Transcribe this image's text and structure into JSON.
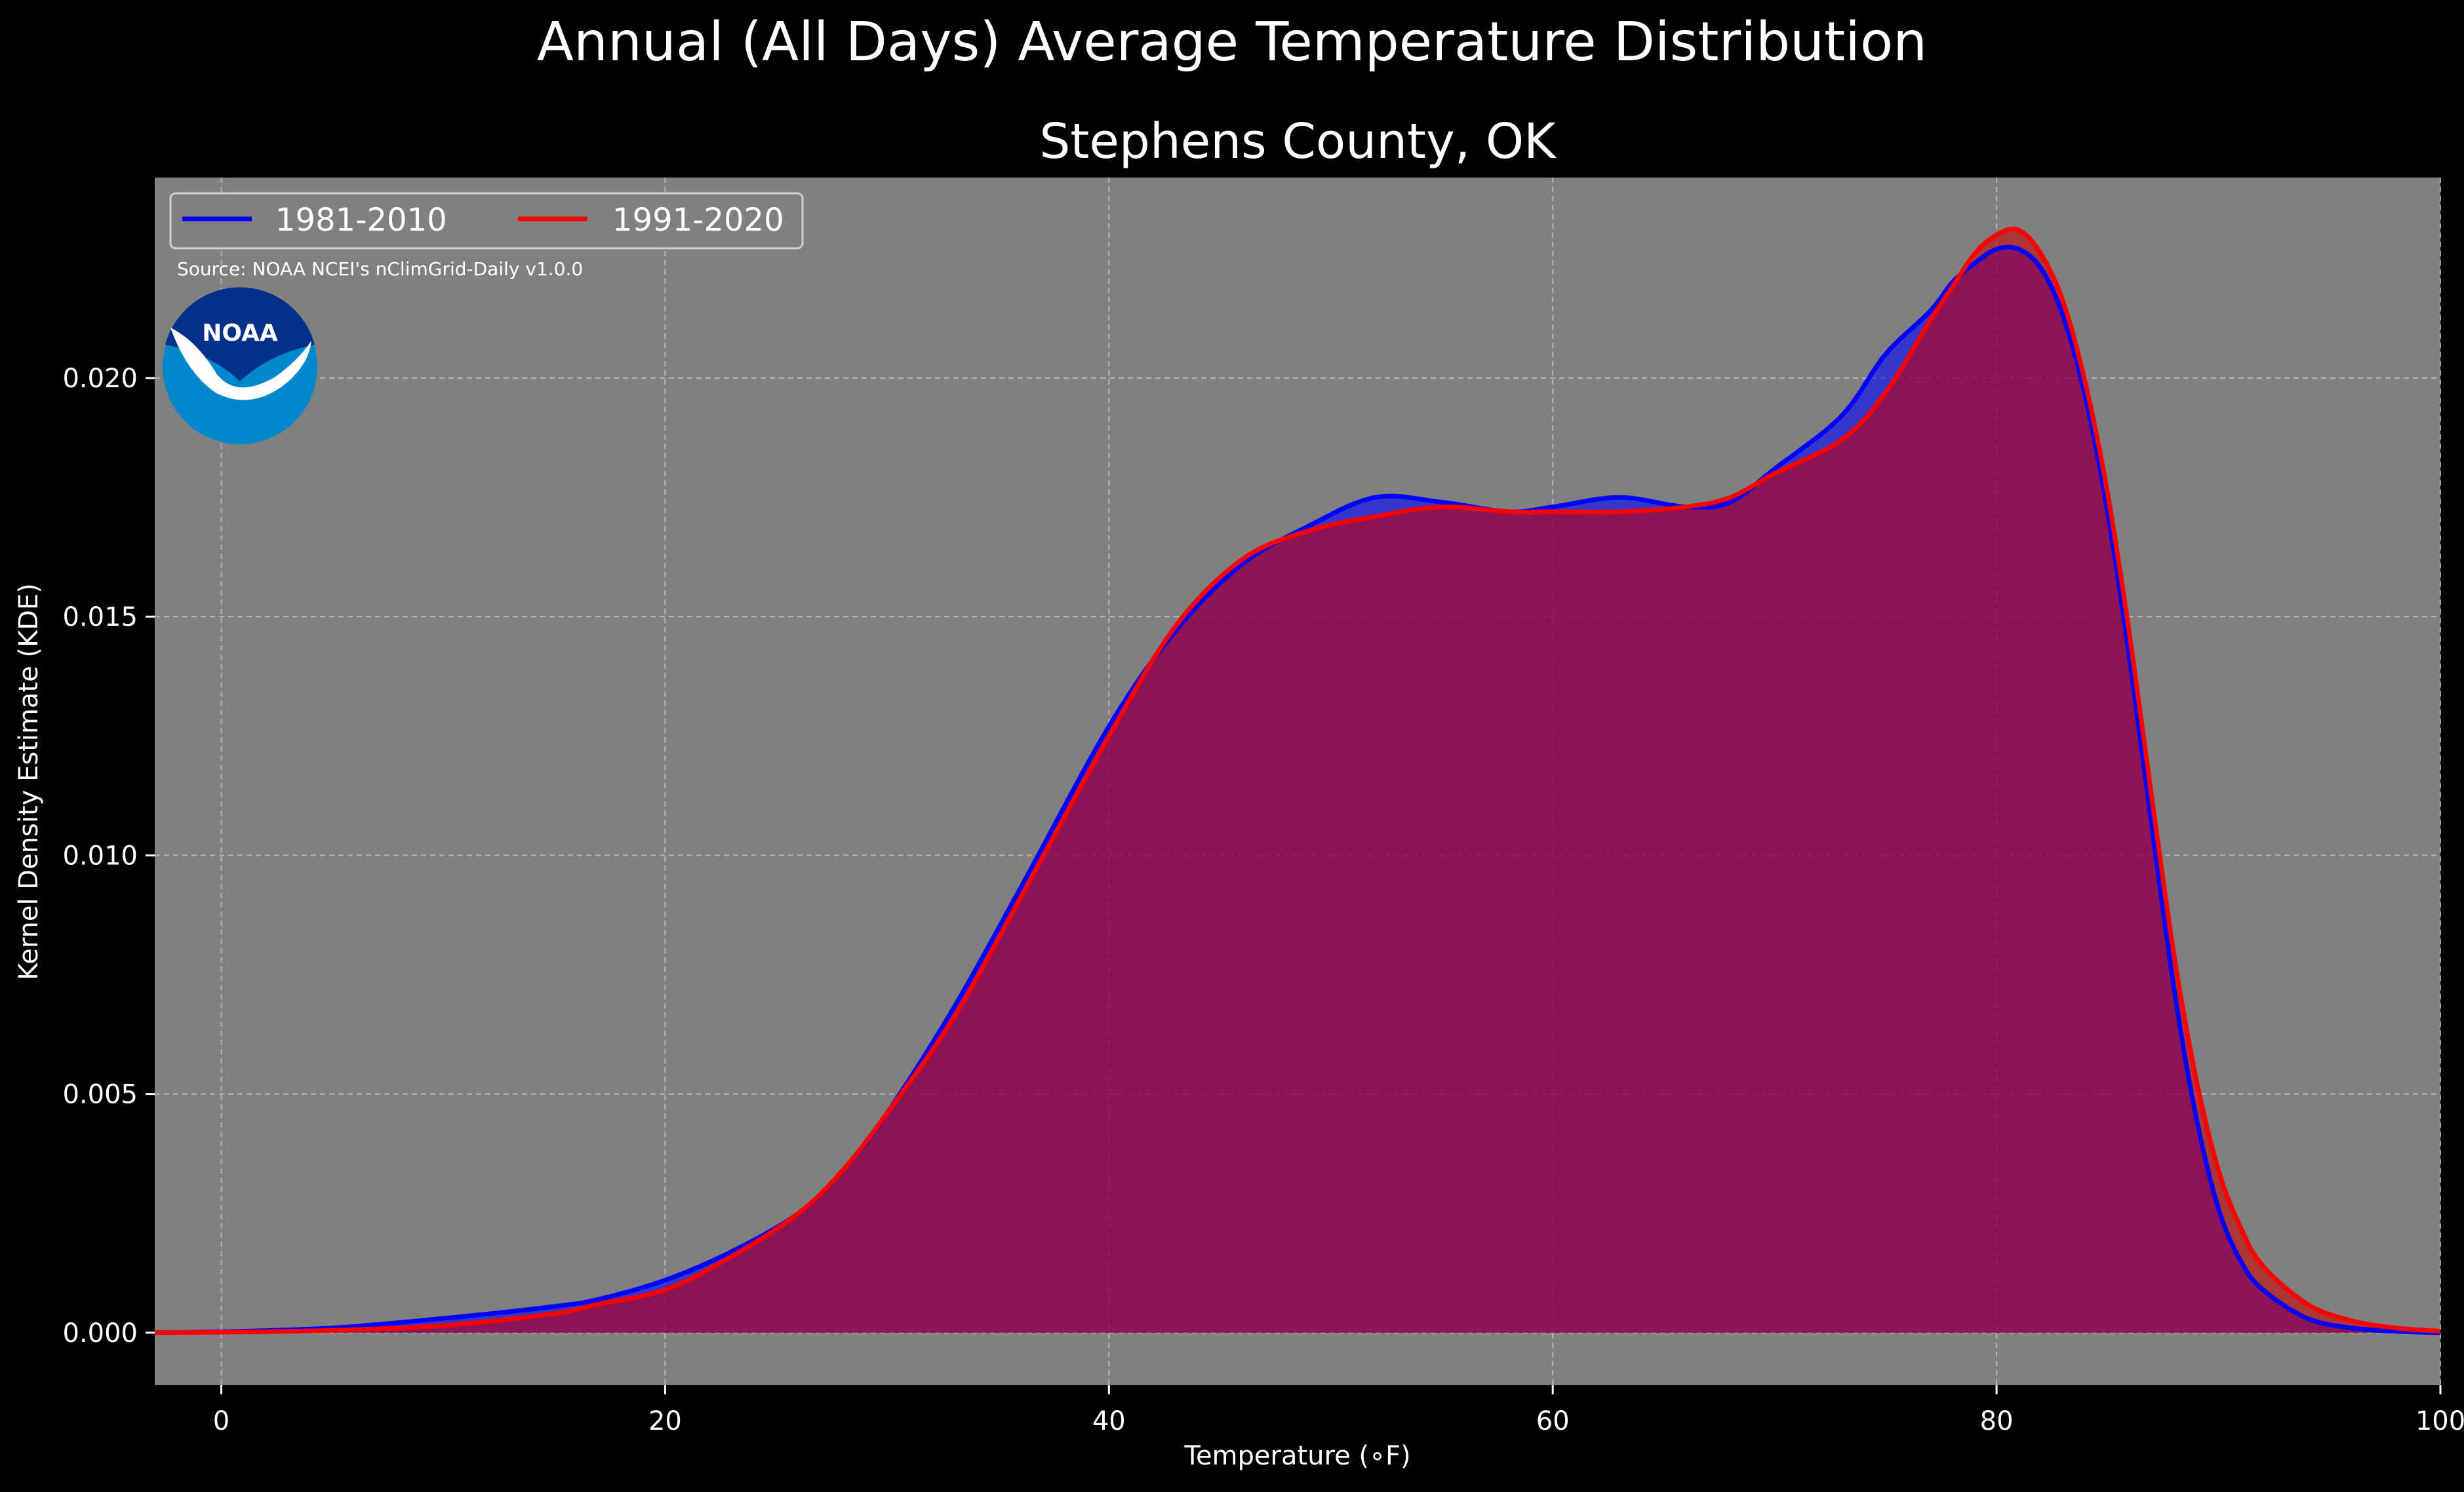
{
  "chart_data": {
    "type": "area",
    "title": "Annual (All Days) Average Temperature Distribution",
    "subtitle": "Stephens County, OK",
    "xlabel": "Temperature (∘F)",
    "ylabel": "Kernel Density Estimate (KDE)",
    "xlim": [
      -3,
      100
    ],
    "ylim": [
      -0.0011,
      0.0242
    ],
    "xticks": [
      0,
      20,
      40,
      60,
      80,
      100
    ],
    "xtick_labels": [
      "0",
      "20",
      "40",
      "60",
      "80",
      "100"
    ],
    "yticks": [
      0.0,
      0.005,
      0.01,
      0.015,
      0.02
    ],
    "ytick_labels": [
      "0.000",
      "0.005",
      "0.010",
      "0.015",
      "0.020"
    ],
    "grid": true,
    "legend_position": "top-left",
    "annotation": "Source: NOAA NCEI's nClimGrid-Daily v1.0.0",
    "logo_text": "NOAA",
    "series": [
      {
        "name": "1981-2010",
        "color": "#0000ff",
        "fill": "#0000ff",
        "x": [
          -3,
          0,
          5,
          10,
          15,
          17,
          20,
          23,
          26,
          28,
          30,
          33,
          36,
          40,
          43,
          46,
          49,
          52,
          55,
          58,
          60,
          63,
          66,
          68,
          70,
          73,
          75,
          77,
          78,
          79,
          80,
          81,
          82,
          83,
          84,
          85,
          86,
          87,
          88,
          89,
          90,
          91,
          92,
          94,
          96,
          98,
          100
        ],
        "y": [
          0.0,
          2e-05,
          0.0001,
          0.0003,
          0.00055,
          0.0007,
          0.0011,
          0.0017,
          0.0025,
          0.0034,
          0.0046,
          0.0068,
          0.0093,
          0.0127,
          0.0147,
          0.0161,
          0.0169,
          0.0175,
          0.0174,
          0.0172,
          0.0173,
          0.0175,
          0.0173,
          0.0174,
          0.0181,
          0.0192,
          0.0205,
          0.0214,
          0.022,
          0.0224,
          0.0227,
          0.0227,
          0.0223,
          0.0213,
          0.0196,
          0.0172,
          0.0141,
          0.0106,
          0.0072,
          0.0045,
          0.0026,
          0.0015,
          0.0009,
          0.0003,
          0.0001,
          3e-05,
          0.0
        ]
      },
      {
        "name": "1991-2020",
        "color": "#ff0000",
        "fill": "#cc0000",
        "x": [
          -3,
          0,
          5,
          10,
          15,
          17,
          20,
          23,
          26,
          28,
          30,
          33,
          36,
          40,
          43,
          46,
          49,
          52,
          55,
          58,
          60,
          63,
          66,
          68,
          70,
          73,
          75,
          77,
          78,
          79,
          80,
          81,
          82,
          83,
          84,
          85,
          86,
          87,
          88,
          89,
          90,
          91,
          92,
          94,
          96,
          98,
          100
        ],
        "y": [
          0.0,
          1e-05,
          5e-05,
          0.00015,
          0.0004,
          0.0006,
          0.0009,
          0.0016,
          0.0025,
          0.0034,
          0.0046,
          0.0066,
          0.0091,
          0.0125,
          0.0148,
          0.0162,
          0.0168,
          0.0171,
          0.0173,
          0.0172,
          0.0172,
          0.0172,
          0.0173,
          0.0175,
          0.018,
          0.0187,
          0.0197,
          0.0212,
          0.0219,
          0.0226,
          0.023,
          0.0231,
          0.0226,
          0.0216,
          0.0199,
          0.0176,
          0.0146,
          0.0112,
          0.0079,
          0.0053,
          0.0034,
          0.0022,
          0.0014,
          0.0006,
          0.00025,
          0.0001,
          3e-05
        ]
      }
    ]
  }
}
